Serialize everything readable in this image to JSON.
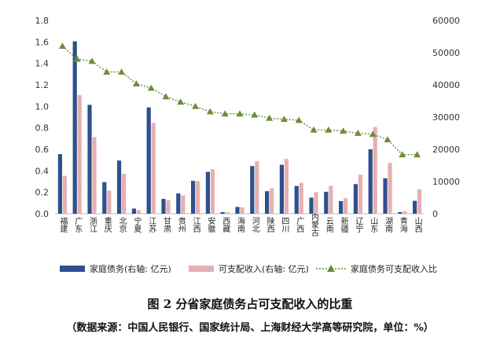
{
  "figure": {
    "title": "图 2  分省家庭债务占可支配收入的比重",
    "source": "（数据来源：中国人民银行、国家统计局、上海财经大学高等研究院，单位：%）"
  },
  "colors": {
    "debt": "#2f4f8f",
    "income": "#d98a8a",
    "ratio_line": "#6b8e3a",
    "ratio_marker": "#6b8e3a"
  },
  "chart_data": {
    "type": "bar",
    "categories": [
      "福建",
      "广东",
      "浙江",
      "重庆",
      "北京",
      "宁夏",
      "江苏",
      "甘肃",
      "贵州",
      "江西",
      "安徽",
      "西藏",
      "海南",
      "河北",
      "陕西",
      "四川",
      "广西",
      "内蒙古",
      "云南",
      "新疆",
      "辽宁",
      "山东",
      "湖南",
      "青海",
      "山西"
    ],
    "left_axis": {
      "ylim": [
        0,
        1.8
      ],
      "ticks": [
        "0.0",
        "0.2",
        "0.4",
        "0.6",
        "0.8",
        "1.0",
        "1.2",
        "1.4",
        "1.6",
        "1.8"
      ]
    },
    "right_axis": {
      "ylim": [
        0,
        60000
      ],
      "ticks": [
        "0",
        "10000",
        "20000",
        "30000",
        "40000",
        "50000",
        "60000"
      ]
    },
    "series": [
      {
        "name": "家庭债务(右轴: 亿元)",
        "kind": "bar",
        "axis": "right",
        "values": [
          18500,
          53500,
          33800,
          9800,
          16500,
          1600,
          33000,
          4600,
          6300,
          10200,
          13000,
          500,
          2100,
          14800,
          7000,
          15200,
          8600,
          5000,
          6800,
          3900,
          9200,
          20000,
          11000,
          500,
          4000
        ]
      },
      {
        "name": "可支配收入(右轴: 亿元)",
        "kind": "bar",
        "axis": "right",
        "values": [
          11800,
          36800,
          23800,
          7200,
          12400,
          1100,
          28200,
          4200,
          5700,
          10100,
          13800,
          500,
          2000,
          16300,
          7900,
          17000,
          9600,
          6700,
          8700,
          4800,
          12100,
          26900,
          15800,
          800,
          7600
        ]
      },
      {
        "name": "家庭债务可支配收入比",
        "kind": "line",
        "axis": "left",
        "values": [
          1.56,
          1.44,
          1.42,
          1.32,
          1.32,
          1.21,
          1.17,
          1.09,
          1.04,
          1.0,
          0.95,
          0.93,
          0.93,
          0.92,
          0.89,
          0.88,
          0.87,
          0.78,
          0.78,
          0.77,
          0.75,
          0.74,
          0.69,
          0.55,
          0.55
        ]
      }
    ],
    "legend_position": "bottom"
  }
}
